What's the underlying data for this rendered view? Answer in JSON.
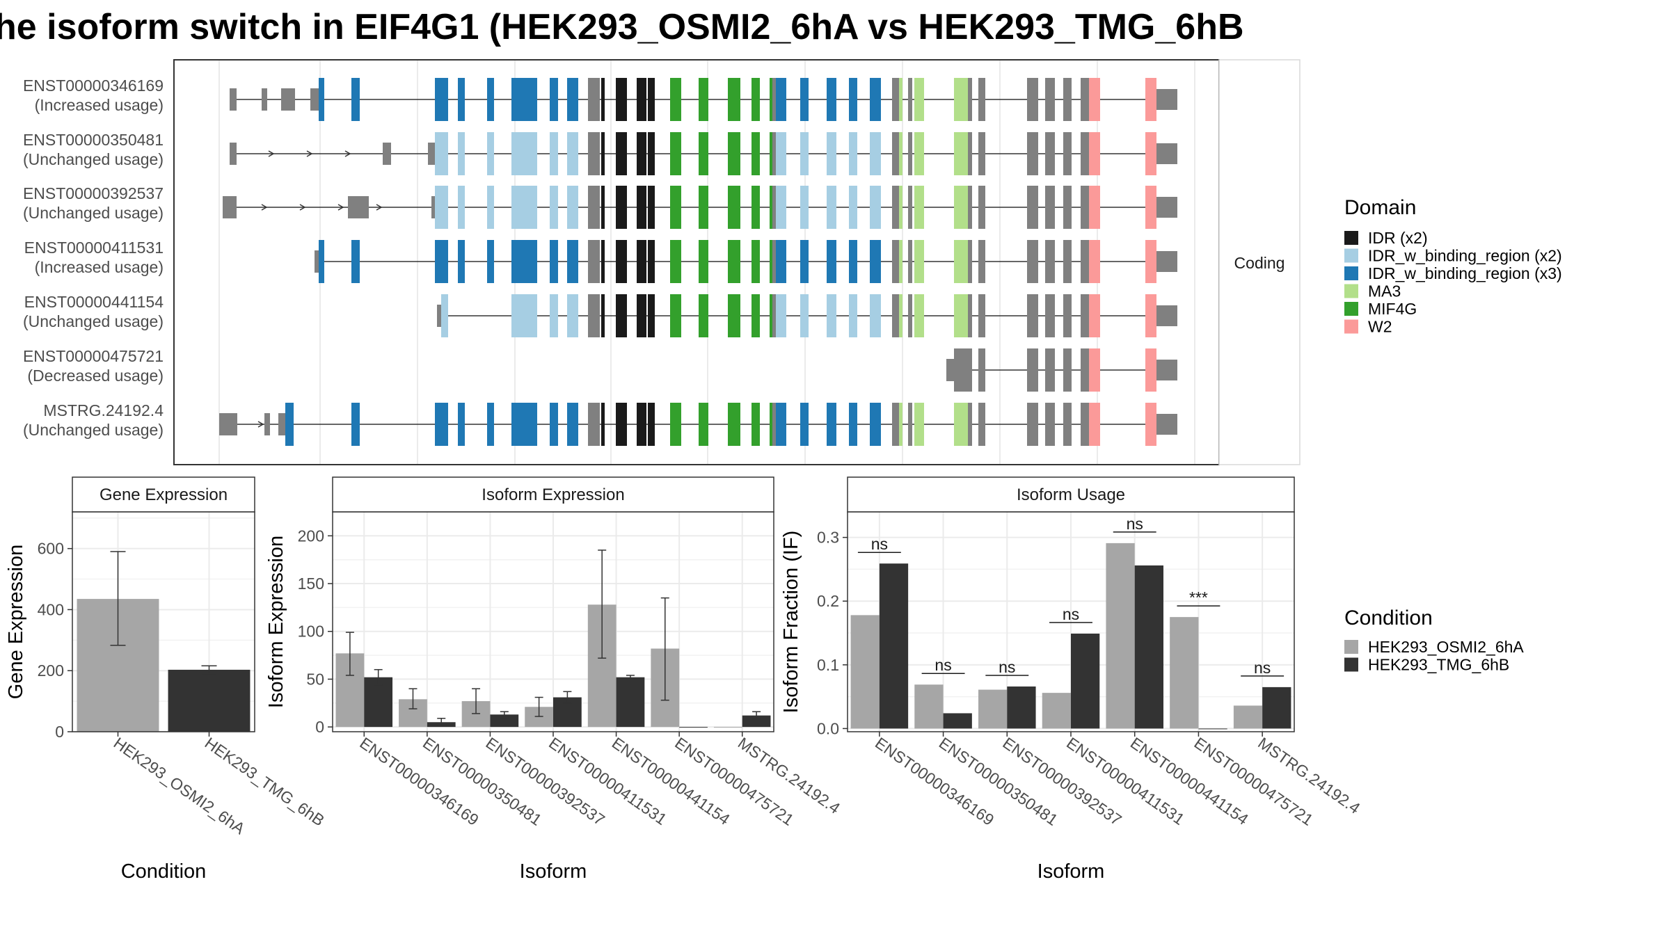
{
  "title": "he isoform switch in EIF4G1 (HEK293_OSMI2_6hA vs HEK293_TMG_6hB",
  "structure": {
    "strip_label": "Coding",
    "isoforms": [
      {
        "id": "ENST00000346169",
        "usage": "(Increased usage)"
      },
      {
        "id": "ENST00000350481",
        "usage": "(Unchanged usage)"
      },
      {
        "id": "ENST00000392537",
        "usage": "(Unchanged usage)"
      },
      {
        "id": "ENST00000411531",
        "usage": "(Increased usage)"
      },
      {
        "id": "ENST00000441154",
        "usage": "(Unchanged usage)"
      },
      {
        "id": "ENST00000475721",
        "usage": "(Decreased usage)"
      },
      {
        "id": "MSTRG.24192.4",
        "usage": "(Unchanged usage)"
      }
    ]
  },
  "domain_legend": {
    "title": "Domain",
    "items": [
      {
        "label": "IDR (x2)",
        "color": "#1a1a1a"
      },
      {
        "label": "IDR_w_binding_region (x2)",
        "color": "#a6cee3"
      },
      {
        "label": "IDR_w_binding_region (x3)",
        "color": "#1f78b4"
      },
      {
        "label": "MA3",
        "color": "#b2df8a"
      },
      {
        "label": "MIF4G",
        "color": "#33a02c"
      },
      {
        "label": "W2",
        "color": "#fb9a99"
      }
    ]
  },
  "condition_legend": {
    "title": "Condition",
    "items": [
      {
        "label": "HEK293_OSMI2_6hA",
        "color": "#a6a6a6"
      },
      {
        "label": "HEK293_TMG_6hB",
        "color": "#333333"
      }
    ]
  },
  "chart_data": [
    {
      "type": "bar",
      "title": "Gene Expression",
      "xlabel": "Condition",
      "ylabel": "Gene Expression",
      "categories": [
        "HEK293_OSMI2_6hA",
        "HEK293_TMG_6hB"
      ],
      "values": [
        435,
        203
      ],
      "errors": [
        [
          283,
          590
        ],
        [
          190,
          216
        ]
      ],
      "ylim": [
        0,
        720
      ],
      "yticks": [
        0,
        200,
        400,
        600
      ]
    },
    {
      "type": "bar",
      "title": "Isoform Expression",
      "xlabel": "Isoform",
      "ylabel": "Isoform Expression",
      "categories": [
        "ENST00000346169",
        "ENST00000350481",
        "ENST00000392537",
        "ENST00000411531",
        "ENST00000441154",
        "ENST00000475721",
        "MSTRG.24192.4"
      ],
      "series": [
        {
          "name": "HEK293_OSMI2_6hA",
          "values": [
            77,
            29,
            27,
            21,
            128,
            82,
            0
          ],
          "errors": [
            [
              54,
              99
            ],
            [
              19,
              40
            ],
            [
              14,
              40
            ],
            [
              11,
              31
            ],
            [
              72,
              185
            ],
            [
              28,
              135
            ],
            [
              0,
              0
            ]
          ]
        },
        {
          "name": "HEK293_TMG_6hB",
          "values": [
            52,
            5,
            13,
            31,
            52,
            0,
            12
          ],
          "errors": [
            [
              44,
              60
            ],
            [
              1,
              9
            ],
            [
              10,
              16
            ],
            [
              25,
              37
            ],
            [
              50,
              54
            ],
            [
              0,
              0
            ],
            [
              8,
              16
            ]
          ]
        }
      ],
      "ylim": [
        -5,
        225
      ],
      "yticks": [
        0,
        50,
        100,
        150,
        200
      ]
    },
    {
      "type": "bar",
      "title": "Isoform Usage",
      "xlabel": "Isoform",
      "ylabel": "Isoform Fraction (IF)",
      "categories": [
        "ENST00000346169",
        "ENST00000350481",
        "ENST00000392537",
        "ENST00000411531",
        "ENST00000441154",
        "ENST00000475721",
        "MSTRG.24192.4"
      ],
      "series": [
        {
          "name": "HEK293_OSMI2_6hA",
          "values": [
            0.178,
            0.069,
            0.061,
            0.056,
            0.291,
            0.175,
            0.036
          ]
        },
        {
          "name": "HEK293_TMG_6hB",
          "values": [
            0.259,
            0.024,
            0.066,
            0.149,
            0.256,
            0.0,
            0.065
          ]
        }
      ],
      "significance": [
        "ns",
        "ns",
        "ns",
        "ns",
        "ns",
        "***",
        "ns"
      ],
      "ylim": [
        -0.005,
        0.34
      ],
      "yticks": [
        0.0,
        0.1,
        0.2,
        0.3
      ]
    }
  ]
}
